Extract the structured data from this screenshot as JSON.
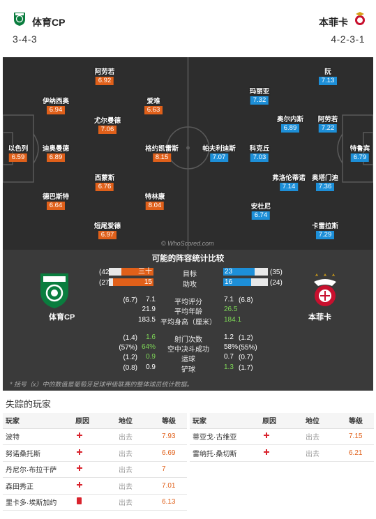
{
  "header": {
    "home": {
      "name": "体育CP",
      "formation": "3-4-3"
    },
    "away": {
      "name": "本菲卡",
      "formation": "4-2-3-1"
    }
  },
  "pitch": {
    "watermark": "© WhoScored.com",
    "home_players": [
      {
        "name": "以色列",
        "rating": "6.59"
      },
      {
        "name": "伊纳西奥",
        "rating": "6.94"
      },
      {
        "name": "迪奥曼德",
        "rating": "6.89"
      },
      {
        "name": "德巴斯特",
        "rating": "6.64"
      },
      {
        "name": "阿劳若",
        "rating": "6.92"
      },
      {
        "name": "尤尔曼德",
        "rating": "7.06"
      },
      {
        "name": "西蒙斯",
        "rating": "6.76"
      },
      {
        "name": "短尾爱德",
        "rating": "6.97"
      },
      {
        "name": "爱难",
        "rating": "6.63"
      },
      {
        "name": "格约凯雷斯",
        "rating": "8.15"
      },
      {
        "name": "特林康",
        "rating": "8.04"
      }
    ],
    "away_players": [
      {
        "name": "特鲁宾",
        "rating": "6.79"
      },
      {
        "name": "阿劳若",
        "rating": "7.22"
      },
      {
        "name": "奥塔门迪",
        "rating": "7.36"
      },
      {
        "name": "卡雷拉斯",
        "rating": "7.29"
      },
      {
        "name": "奥尔内斯",
        "rating": "6.89"
      },
      {
        "name": "弗洛伦蒂诺",
        "rating": "7.14"
      },
      {
        "name": "阮",
        "rating": "7.13"
      },
      {
        "name": "科克丘",
        "rating": "7.03"
      },
      {
        "name": "安杜尼",
        "rating": "6.74"
      },
      {
        "name": "玛丽亚",
        "rating": "7.32"
      },
      {
        "name": "帕夫利迪斯",
        "rating": "7.07"
      }
    ]
  },
  "comparison": {
    "title": "可能的阵容统计比较",
    "home_name": "体育CP",
    "away_name": "本菲卡",
    "bars": [
      {
        "label": "目标",
        "home": "三十",
        "home_rank": "(42)",
        "home_pct": 0.72,
        "away": "23",
        "away_rank": "(35)",
        "away_pct": 0.7
      },
      {
        "label": "助攻",
        "home": "15",
        "home_rank": "(27)",
        "home_pct": 0.9,
        "away": "16",
        "away_rank": "(24)",
        "away_pct": 0.62
      }
    ],
    "rows": [
      {
        "label": "平均评分",
        "home": "7.1",
        "home_sub": "(6.7)",
        "away": "7.1",
        "away_sub": "(6.8)",
        "home_green": false,
        "away_green": false
      },
      {
        "label": "平均年龄",
        "home": "21.9",
        "home_sub": "",
        "away": "26.5",
        "away_sub": "",
        "home_green": false,
        "away_green": true
      },
      {
        "label": "平均身高（厘米）",
        "home": "183.5",
        "home_sub": "",
        "away": "184.1",
        "away_sub": "",
        "home_green": false,
        "away_green": true
      },
      {
        "label": "射门次数",
        "home": "1.6",
        "home_sub": "(1.4)",
        "away": "1.2",
        "away_sub": "(1.2)",
        "home_green": true,
        "away_green": false
      },
      {
        "label": "空中决斗成功",
        "home": "64%",
        "home_sub": "(57%)",
        "away": "58%",
        "away_sub": "(55%)",
        "home_green": true,
        "away_green": false
      },
      {
        "label": "运球",
        "home": "0.9",
        "home_sub": "(1.2)",
        "away": "0.7",
        "away_sub": "(0.7)",
        "home_green": true,
        "away_green": false
      },
      {
        "label": "铲球",
        "home": "0.9",
        "home_sub": "(0.8)",
        "away": "1.3",
        "away_sub": "(1.7)",
        "home_green": false,
        "away_green": true
      }
    ],
    "note": "* 括号（x）中的数值是葡萄牙足球甲级联赛的整体球员统计数据。"
  },
  "missing": {
    "title": "失踪的玩家",
    "columns": [
      "玩家",
      "原因",
      "地位",
      "等级"
    ],
    "home": [
      {
        "player": "波特",
        "reason": "injury",
        "status": "出去",
        "rating": "7.93"
      },
      {
        "player": "努诺桑托斯",
        "reason": "injury",
        "status": "出去",
        "rating": "6.69"
      },
      {
        "player": "丹尼尔·布拉干萨",
        "reason": "injury",
        "status": "出去",
        "rating": "7"
      },
      {
        "player": "森田秀正",
        "reason": "injury",
        "status": "出去",
        "rating": "7.01"
      },
      {
        "player": "里卡多·埃斯加约",
        "reason": "red-card",
        "status": "出去",
        "rating": "6.13"
      }
    ],
    "away": [
      {
        "player": "蒂亚戈·古维亚",
        "reason": "injury",
        "status": "出去",
        "rating": "7.15"
      },
      {
        "player": "雷纳托·桑切斯",
        "reason": "injury",
        "status": "出去",
        "rating": "6.21"
      }
    ]
  }
}
